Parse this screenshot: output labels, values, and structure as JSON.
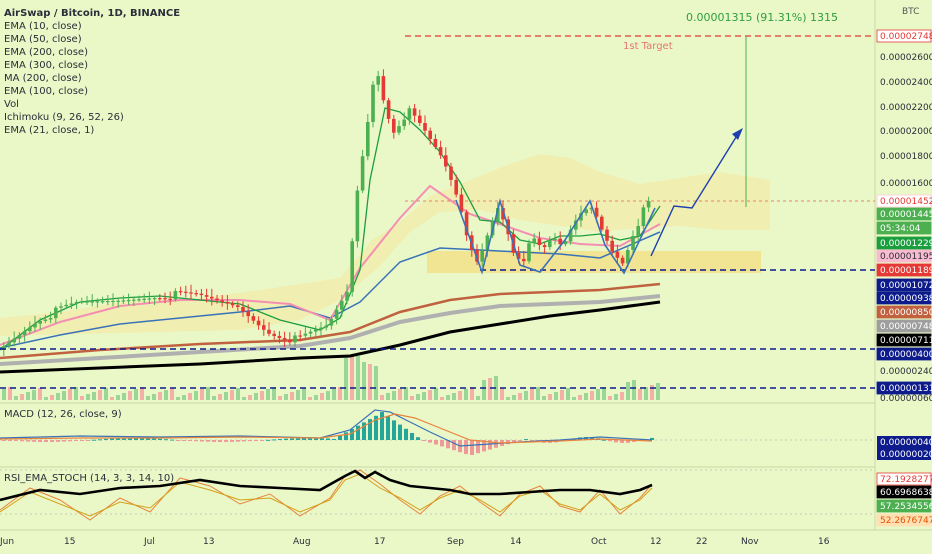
{
  "chart_data": {
    "type": "candlestick",
    "symbol_title": "AirSwap / Bitcoin, 1D, BINANCE",
    "currency_label": "BTC",
    "indicators": [
      "EMA (10, close)",
      "EMA (50, close)",
      "EMA (200, close)",
      "EMA (300, close)",
      "MA (200, close)",
      "EMA (100, close)",
      "Vol",
      "Ichimoku (9, 26, 52, 26)",
      "EMA (21, close, 1)"
    ],
    "measure_label": "0.00001315 (91.31%) 1315",
    "target_label": "1st Target",
    "x_axis": {
      "ticks": [
        "Jun",
        "15",
        "Jul",
        "13",
        "Aug",
        "17",
        "Sep",
        "14",
        "Oct",
        "12",
        "22",
        "Nov",
        "16"
      ]
    },
    "y_axis": {
      "ticks": [
        "0.00002800",
        "0.00002600",
        "0.00002400",
        "0.00002200",
        "0.00002000",
        "0.00001800",
        "0.00001600",
        "0.00000240",
        "0.00000060"
      ],
      "tags": [
        {
          "text": "0.00002748",
          "bg": "#ffffff",
          "fg": "#e53935",
          "border": "#e53935"
        },
        {
          "text": "0.00001452",
          "bg": "#ffffff",
          "fg": "#e53935",
          "border": "#ffcdd2"
        },
        {
          "text": "0.00001445",
          "bg": "#4caf50",
          "fg": "#ffffff",
          "border": "#4caf50"
        },
        {
          "text": "05:34:04",
          "bg": "#4caf50",
          "fg": "#ffffff",
          "border": "#4caf50"
        },
        {
          "text": "0.00001229",
          "bg": "#1b9e3e",
          "fg": "#ffffff",
          "border": "#1b9e3e"
        },
        {
          "text": "0.00001195",
          "bg": "#f8bbd0",
          "fg": "#2a2e39",
          "border": "#f8bbd0"
        },
        {
          "text": "0.00001189",
          "bg": "#e53935",
          "fg": "#ffffff",
          "border": "#e53935"
        },
        {
          "text": "0.00001072",
          "bg": "#0d1b8c",
          "fg": "#ffffff",
          "border": "#0d1b8c"
        },
        {
          "text": "0.00000938",
          "bg": "#0d1b8c",
          "fg": "#ffffff",
          "border": "#0d1b8c"
        },
        {
          "text": "0.00000850",
          "bg": "#c0613f",
          "fg": "#ffffff",
          "border": "#c0613f"
        },
        {
          "text": "0.00000748",
          "bg": "#9e9e9e",
          "fg": "#ffffff",
          "border": "#9e9e9e"
        },
        {
          "text": "0.00000711",
          "bg": "#000000",
          "fg": "#ffffff",
          "border": "#000000"
        },
        {
          "text": "0.00000400",
          "bg": "#0d1b8c",
          "fg": "#ffffff",
          "border": "#0d1b8c"
        },
        {
          "text": "0.00000131",
          "bg": "#0d1b8c",
          "fg": "#ffffff",
          "border": "#0d1b8c"
        }
      ]
    },
    "macd": {
      "title": "MACD (12, 26, close, 9)",
      "tags": [
        {
          "text": "0.00000040",
          "bg": "#0d1b8c",
          "fg": "#ffffff"
        },
        {
          "text": "0.00000020",
          "bg": "#0d1b8c",
          "fg": "#ffffff"
        }
      ]
    },
    "stoch": {
      "title": "RSI_EMA_STOCH (14, 3, 3, 14, 10)",
      "tags": [
        {
          "text": "72.19282775",
          "bg": "#ffffff",
          "fg": "#e53935"
        },
        {
          "text": "60.69686384",
          "bg": "#000000",
          "fg": "#ffffff"
        },
        {
          "text": "57.25345565",
          "bg": "#4caf50",
          "fg": "#ffffff"
        },
        {
          "text": "52.26767473",
          "bg": "#ffe0b2",
          "fg": "#e65100"
        }
      ]
    },
    "levels": {
      "target": 2.748e-05,
      "resistance": 1.452e-05,
      "support_1": 1.072e-05,
      "support_2": 4e-06,
      "support_3": 1.31e-06
    },
    "grid": false,
    "legend_position": "top-left"
  },
  "colors": {
    "background": "#eaf8c8",
    "bull": "#4caf50",
    "bear": "#e53935",
    "ema10": "#1b9e3e",
    "ema21": "#f48fb1",
    "ema50": "#3a72b8",
    "ema100": "#c0613f",
    "ma200": "#b0b0b0",
    "ema200": "#000000",
    "support_line": "#0d1b8c",
    "target_line": "#e53935",
    "measure": "#4caf50",
    "cloud": "#f5e6a0",
    "zone": "#f5d76e",
    "macd_line": "#3a72b8",
    "signal_line": "#e8843c",
    "stoch_black": "#000000",
    "stoch_orange": "#e8843c",
    "stoch_yellow": "#d4a017"
  }
}
